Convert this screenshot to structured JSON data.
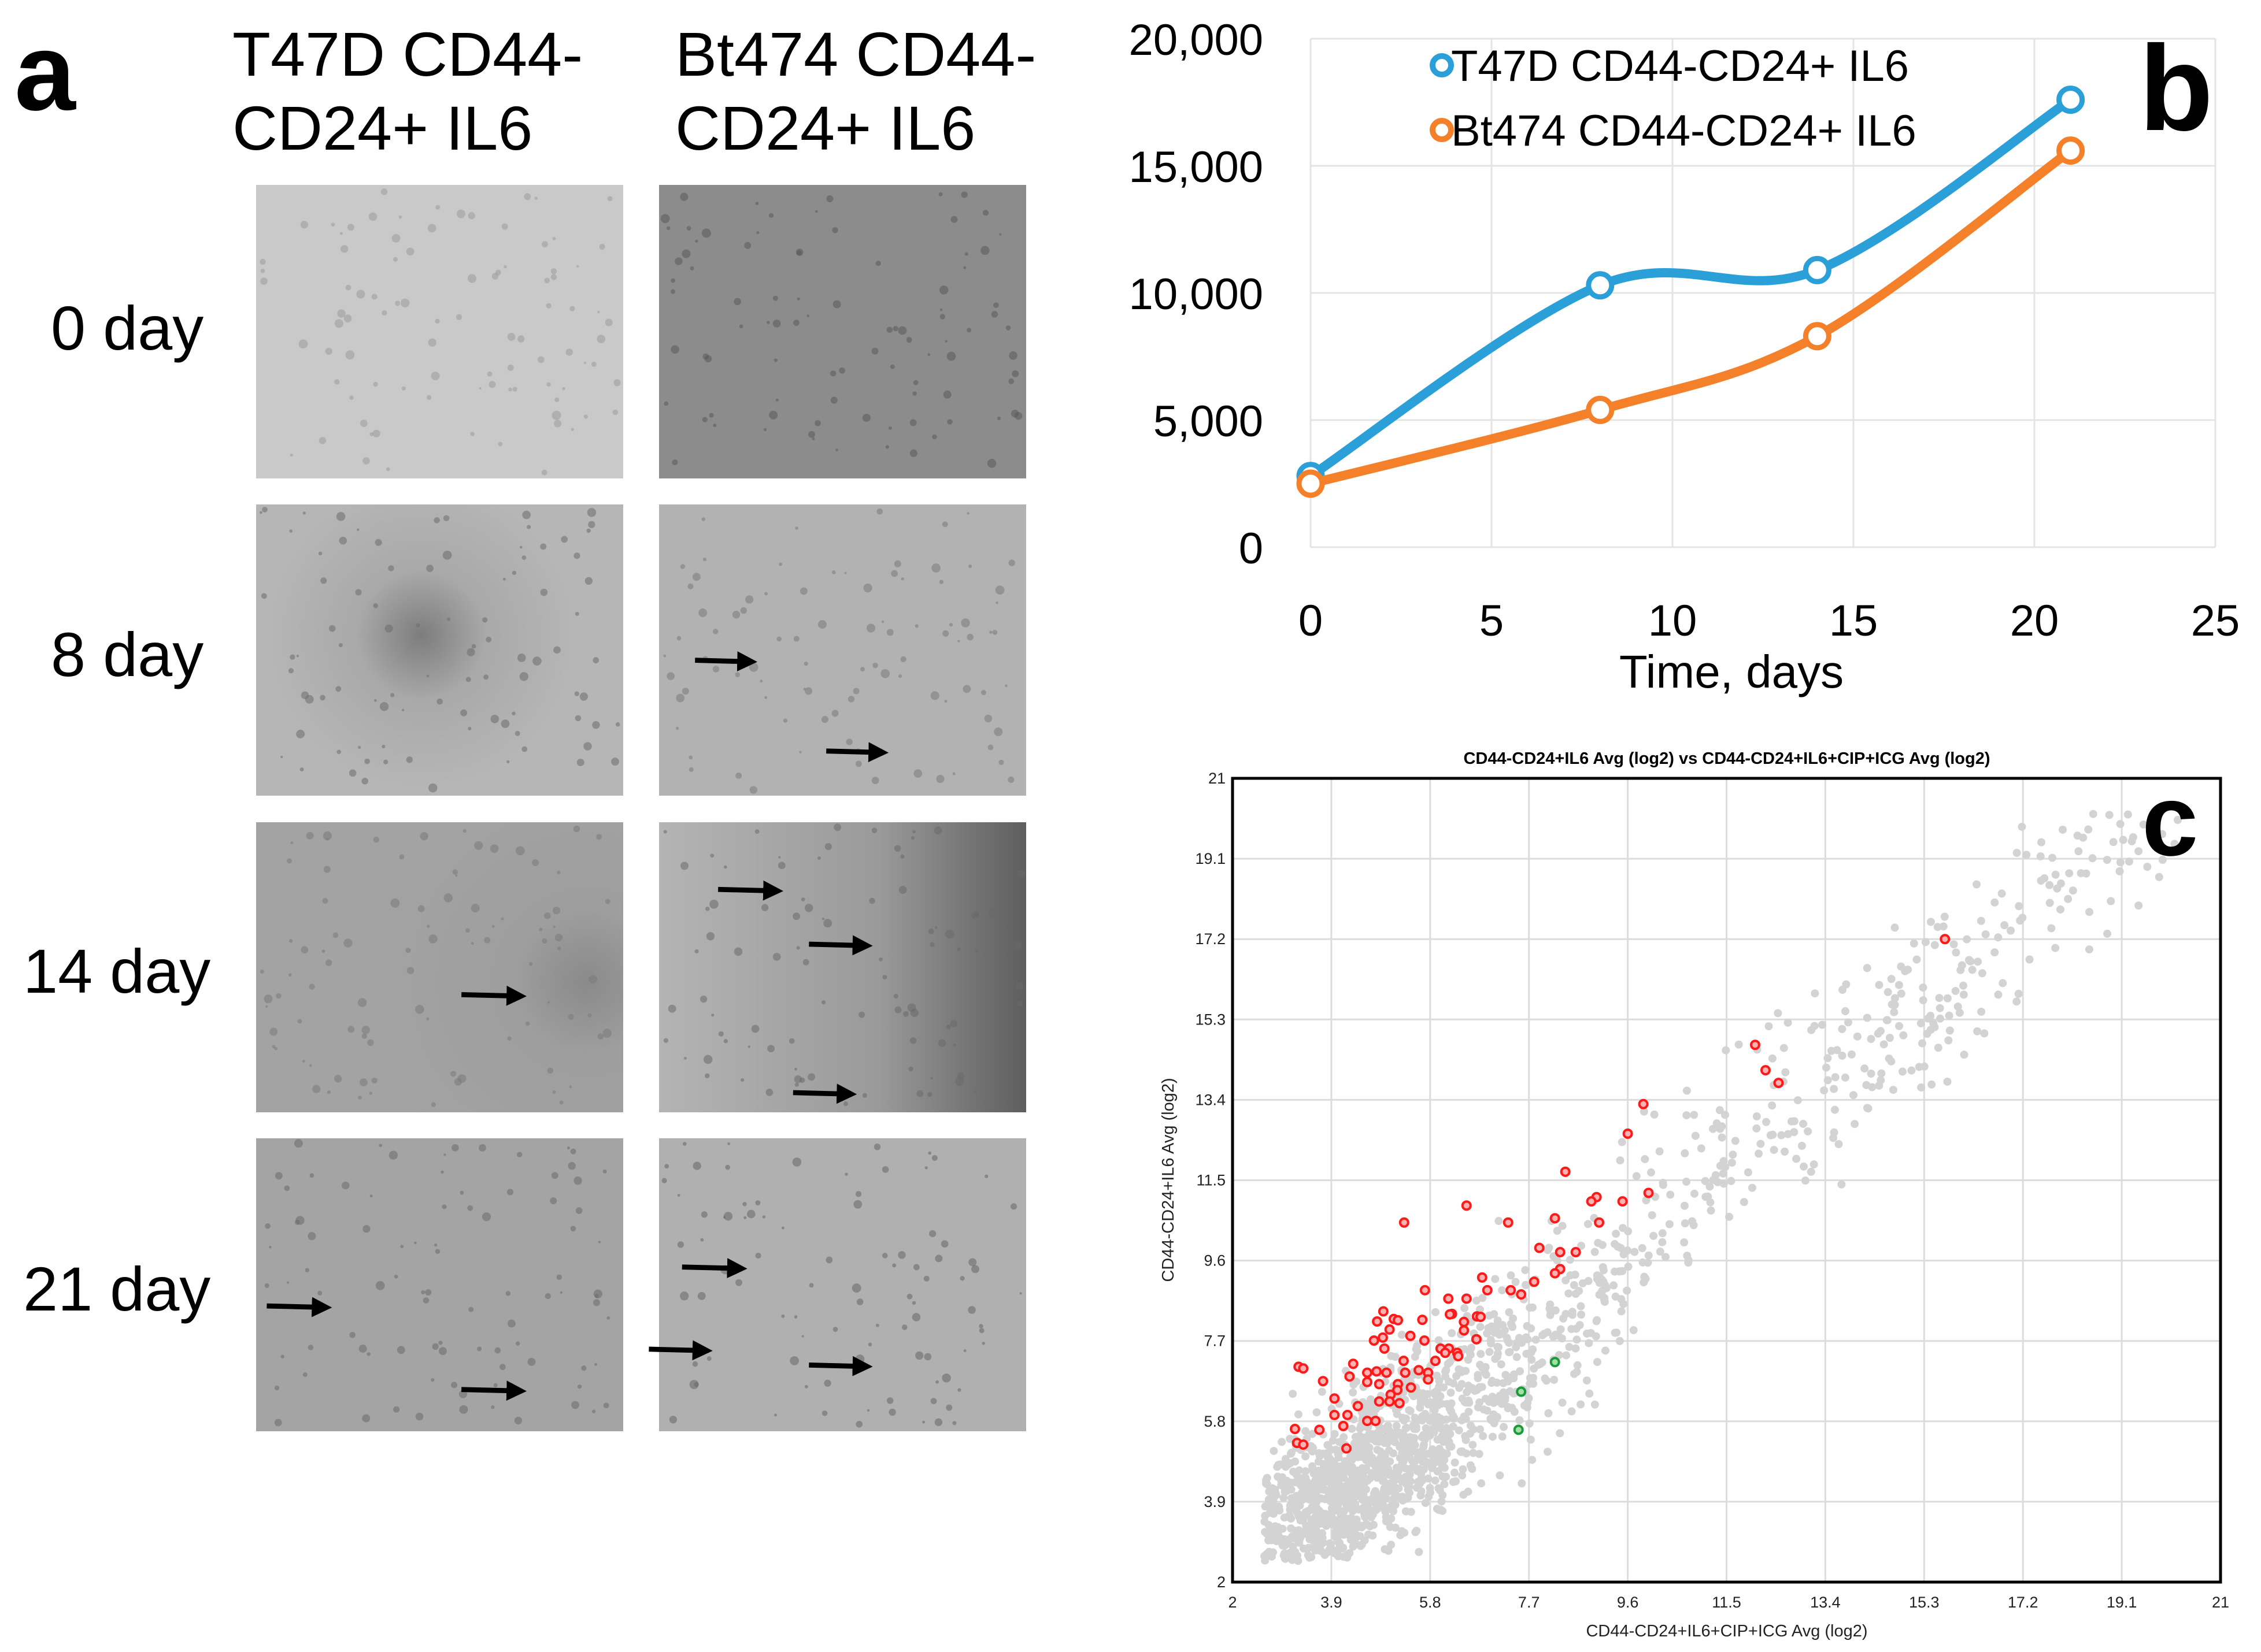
{
  "panel_a": {
    "letter": "a",
    "columns": [
      {
        "line1": "T47D CD44-",
        "line2": "CD24+ IL6"
      },
      {
        "line1": "Bt474 CD44-",
        "line2": "CD24+ IL6"
      }
    ],
    "rows": [
      "0 day",
      "8 day",
      "14 day",
      "21 day"
    ]
  },
  "panel_b": {
    "letter": "b"
  },
  "panel_c": {
    "letter": "c"
  },
  "chart_data": [
    {
      "type": "line",
      "title": "",
      "xlabel": "Time, days",
      "ylabel": "",
      "xlim": [
        0,
        25
      ],
      "ylim": [
        0,
        20000
      ],
      "xticks": [
        0,
        5,
        10,
        15,
        20,
        25
      ],
      "xtick_labels": [
        "0",
        "5",
        "10",
        "15",
        "20",
        "25"
      ],
      "yticks": [
        0,
        5000,
        10000,
        15000,
        20000
      ],
      "ytick_labels": [
        "0",
        "5,000",
        "10,000",
        "15,000",
        "20,000"
      ],
      "grid": true,
      "legend_position": "top-left",
      "x": [
        0,
        8,
        14,
        21
      ],
      "series": [
        {
          "name": "T47D CD44-CD24+ IL6",
          "color": "#2a9fd8",
          "values": [
            2800,
            10300,
            10900,
            17600
          ]
        },
        {
          "name": "Bt474 CD44-CD24+ IL6",
          "color": "#f5802a",
          "values": [
            2500,
            5400,
            8300,
            15600
          ]
        }
      ]
    },
    {
      "type": "scatter",
      "title": "CD44-CD24+IL6 Avg (log2) vs CD44-CD24+IL6+CIP+ICG Avg (log2)",
      "xlabel": "CD44-CD24+IL6+CIP+ICG Avg (log2)",
      "ylabel": "CD44-CD24+IL6 Avg (log2)",
      "xlim": [
        2,
        21
      ],
      "ylim": [
        2,
        21
      ],
      "ticks": [
        2,
        3.9,
        5.8,
        7.7,
        9.6,
        11.5,
        13.4,
        15.3,
        17.2,
        19.1,
        21
      ],
      "tick_labels": [
        "2",
        "3.9",
        "5.8",
        "7.7",
        "9.6",
        "11.5",
        "13.4",
        "15.3",
        "17.2",
        "19.1",
        "21"
      ],
      "grid": true,
      "background_points": {
        "color": "#d3d3d3",
        "description_count": 1800
      },
      "up_regulated": {
        "color": "#ff1a1a",
        "points": [
          [
            15.7,
            17.2
          ],
          [
            12.05,
            14.7
          ],
          [
            12.25,
            14.1
          ],
          [
            12.5,
            13.8
          ],
          [
            9.9,
            13.3
          ],
          [
            9.6,
            12.6
          ],
          [
            8.4,
            11.7
          ],
          [
            10.0,
            11.2
          ],
          [
            9.0,
            11.1
          ],
          [
            8.9,
            11.0
          ],
          [
            9.5,
            11.0
          ],
          [
            6.5,
            10.9
          ],
          [
            5.3,
            10.5
          ],
          [
            7.3,
            10.5
          ],
          [
            8.2,
            10.6
          ],
          [
            9.05,
            10.5
          ],
          [
            7.9,
            9.9
          ],
          [
            8.3,
            9.8
          ],
          [
            8.6,
            9.8
          ],
          [
            8.3,
            9.4
          ],
          [
            8.2,
            9.3
          ],
          [
            6.8,
            9.2
          ],
          [
            7.8,
            9.1
          ],
          [
            5.7,
            8.9
          ],
          [
            6.9,
            8.9
          ],
          [
            7.35,
            8.9
          ],
          [
            7.55,
            8.8
          ],
          [
            6.15,
            8.7
          ],
          [
            6.5,
            8.7
          ],
          [
            4.9,
            8.4
          ],
          [
            4.78,
            8.16
          ],
          [
            5.1,
            8.22
          ],
          [
            5.18,
            8.19
          ],
          [
            5.65,
            8.2
          ],
          [
            5.02,
            7.97
          ],
          [
            6.7,
            8.28
          ],
          [
            6.77,
            8.27
          ],
          [
            6.22,
            8.34
          ],
          [
            6.18,
            8.33
          ],
          [
            6.45,
            8.15
          ],
          [
            6.45,
            7.95
          ],
          [
            5.42,
            7.82
          ],
          [
            5.69,
            7.71
          ],
          [
            4.72,
            7.71
          ],
          [
            4.89,
            7.78
          ],
          [
            6.69,
            7.74
          ],
          [
            4.92,
            7.52
          ],
          [
            6.0,
            7.52
          ],
          [
            6.16,
            7.52
          ],
          [
            6.09,
            7.42
          ],
          [
            6.32,
            7.42
          ],
          [
            6.34,
            7.34
          ],
          [
            3.27,
            7.09
          ],
          [
            3.36,
            7.05
          ],
          [
            4.32,
            7.16
          ],
          [
            5.29,
            7.23
          ],
          [
            5.9,
            7.23
          ],
          [
            5.58,
            7.01
          ],
          [
            5.76,
            6.95
          ],
          [
            5.76,
            6.79
          ],
          [
            4.25,
            6.86
          ],
          [
            4.59,
            6.95
          ],
          [
            4.77,
            6.98
          ],
          [
            4.96,
            6.95
          ],
          [
            5.32,
            6.95
          ],
          [
            3.74,
            6.75
          ],
          [
            4.59,
            6.73
          ],
          [
            4.82,
            6.68
          ],
          [
            5.18,
            6.68
          ],
          [
            5.43,
            6.6
          ],
          [
            5.17,
            6.54
          ],
          [
            5.04,
            6.43
          ],
          [
            3.96,
            6.34
          ],
          [
            4.82,
            6.27
          ],
          [
            5.02,
            6.27
          ],
          [
            5.21,
            6.23
          ],
          [
            4.41,
            6.16
          ],
          [
            3.96,
            5.95
          ],
          [
            4.21,
            5.95
          ],
          [
            4.59,
            5.81
          ],
          [
            4.75,
            5.81
          ],
          [
            4.13,
            5.69
          ],
          [
            3.2,
            5.62
          ],
          [
            3.67,
            5.6
          ],
          [
            3.24,
            5.29
          ],
          [
            3.36,
            5.25
          ],
          [
            4.19,
            5.16
          ]
        ]
      },
      "down_regulated": {
        "color": "#1a9a3a",
        "points": [
          [
            8.2,
            7.2
          ],
          [
            7.55,
            6.5
          ],
          [
            7.5,
            5.6
          ]
        ]
      }
    }
  ]
}
